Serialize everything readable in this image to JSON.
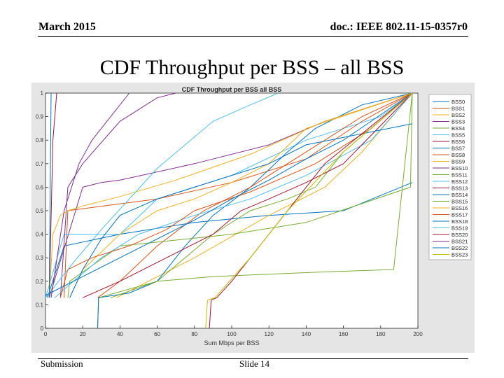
{
  "header": {
    "date": "March 2015",
    "doc": "doc.: IEEE 802.11-15-0357r0"
  },
  "slide": {
    "title": "CDF Throughput per BSS – all BSS"
  },
  "footer": {
    "submission": "Submission",
    "slide_number": "Slide 14"
  },
  "chart_data": {
    "type": "line",
    "title": "CDF Throughput per BSS    all BSS",
    "xlabel": "Sum Mbps per BSS",
    "ylabel": "",
    "xlim": [
      0,
      200
    ],
    "ylim": [
      0,
      1
    ],
    "x_ticks": [
      "0",
      "20",
      "40",
      "60",
      "80",
      "100",
      "120",
      "140",
      "160",
      "180",
      "200"
    ],
    "y_ticks": [
      "0",
      "0.1",
      "0.2",
      "0.3",
      "0.4",
      "0.5",
      "0.6",
      "0.7",
      "0.8",
      "0.9",
      "1"
    ],
    "x_tick_values": [
      0,
      20,
      40,
      60,
      80,
      100,
      120,
      140,
      160,
      180,
      200
    ],
    "y_tick_values": [
      0,
      0.1,
      0.2,
      0.3,
      0.4,
      0.5,
      0.6,
      0.7,
      0.8,
      0.9,
      1
    ],
    "legend_position": "right",
    "series": [
      {
        "name": "BSS0",
        "color": "#0072bd",
        "x": [
          1,
          10,
          40,
          80,
          120,
          160,
          197
        ],
        "y": [
          0.13,
          0.35,
          0.4,
          0.45,
          0.48,
          0.5,
          0.62
        ]
      },
      {
        "name": "BSS1",
        "color": "#d95319",
        "x": [
          10,
          12,
          60,
          100,
          140,
          170,
          197
        ],
        "y": [
          0.13,
          0.5,
          0.55,
          0.62,
          0.72,
          0.88,
          1.0
        ]
      },
      {
        "name": "BSS2",
        "color": "#edb120",
        "x": [
          38,
          80,
          120,
          150,
          170,
          197
        ],
        "y": [
          0.13,
          0.3,
          0.48,
          0.6,
          0.75,
          1.0
        ]
      },
      {
        "name": "BSS3",
        "color": "#7e2f8e",
        "x": [
          2,
          20,
          30,
          40,
          80,
          120,
          150,
          197
        ],
        "y": [
          0.13,
          0.6,
          0.62,
          0.63,
          0.7,
          0.78,
          0.88,
          1.0
        ]
      },
      {
        "name": "BSS4",
        "color": "#77ac30",
        "x": [
          28,
          28.5,
          60,
          90,
          110,
          130,
          145,
          160,
          197
        ],
        "y": [
          0,
          0.13,
          0.2,
          0.4,
          0.5,
          0.55,
          0.6,
          0.75,
          1.0
        ]
      },
      {
        "name": "BSS5",
        "color": "#4dbeee",
        "x": [
          0,
          10,
          40,
          60,
          100,
          140,
          180,
          197
        ],
        "y": [
          0.13,
          0.4,
          0.4,
          0.55,
          0.65,
          0.8,
          0.9,
          1.0
        ]
      },
      {
        "name": "BSS6",
        "color": "#a2142f",
        "x": [
          2,
          4,
          6
        ],
        "y": [
          0.13,
          0.8,
          1.0
        ]
      },
      {
        "name": "BSS7",
        "color": "#0072bd",
        "x": [
          28,
          28.5,
          45,
          60,
          75,
          90,
          110,
          130,
          145,
          170,
          197
        ],
        "y": [
          0,
          0.13,
          0.15,
          0.2,
          0.35,
          0.48,
          0.6,
          0.75,
          0.85,
          0.95,
          1.0
        ]
      },
      {
        "name": "BSS8",
        "color": "#d95319",
        "x": [
          28,
          40,
          60,
          85,
          110,
          130,
          150,
          170,
          197
        ],
        "y": [
          0.13,
          0.2,
          0.35,
          0.5,
          0.6,
          0.7,
          0.8,
          0.9,
          1.0
        ]
      },
      {
        "name": "BSS9",
        "color": "#edb120",
        "x": [
          13,
          20,
          40,
          60,
          80,
          100,
          120,
          140,
          197
        ],
        "y": [
          0.13,
          0.25,
          0.4,
          0.5,
          0.55,
          0.62,
          0.7,
          0.85,
          1.0
        ]
      },
      {
        "name": "BSS10",
        "color": "#7e2f8e",
        "x": [
          8,
          12,
          20,
          40,
          60,
          70
        ],
        "y": [
          0.13,
          0.6,
          0.7,
          0.88,
          0.98,
          1.0
        ]
      },
      {
        "name": "BSS11",
        "color": "#77ac30",
        "x": [
          12,
          13,
          40,
          100,
          140,
          196,
          197
        ],
        "y": [
          0.13,
          0.2,
          0.35,
          0.4,
          0.45,
          0.6,
          1.0
        ]
      },
      {
        "name": "BSS12",
        "color": "#4dbeee",
        "x": [
          5,
          15,
          30,
          50,
          80,
          110,
          140,
          175,
          197
        ],
        "y": [
          0.13,
          0.2,
          0.3,
          0.4,
          0.48,
          0.55,
          0.65,
          0.8,
          1.0
        ]
      },
      {
        "name": "BSS13",
        "color": "#a2142f",
        "x": [
          20,
          40,
          65,
          90,
          105,
          120,
          140,
          160,
          197
        ],
        "y": [
          0.13,
          0.2,
          0.3,
          0.4,
          0.5,
          0.55,
          0.62,
          0.7,
          1.0
        ]
      },
      {
        "name": "BSS14",
        "color": "#0072bd",
        "x": [
          13,
          20,
          30,
          40,
          60,
          80,
          100,
          120,
          140,
          197
        ],
        "y": [
          0.13,
          0.25,
          0.38,
          0.48,
          0.55,
          0.6,
          0.65,
          0.7,
          0.78,
          0.87
        ]
      },
      {
        "name": "BSS15",
        "color": "#77ac30",
        "x": [
          35,
          60,
          90,
          120,
          150,
          187,
          197
        ],
        "y": [
          0.13,
          0.2,
          0.22,
          0.23,
          0.24,
          0.25,
          1.0
        ]
      },
      {
        "name": "BSS16",
        "color": "#edb120",
        "x": [
          2,
          4,
          8,
          12,
          20,
          40,
          70,
          110,
          150,
          197
        ],
        "y": [
          0.13,
          0.4,
          0.48,
          0.5,
          0.52,
          0.56,
          0.63,
          0.74,
          0.88,
          1.0
        ]
      },
      {
        "name": "BSS17",
        "color": "#d95319",
        "x": [
          8,
          12,
          25,
          45,
          65,
          80,
          110,
          145,
          175,
          197
        ],
        "y": [
          0.13,
          0.25,
          0.3,
          0.35,
          0.42,
          0.5,
          0.58,
          0.7,
          0.85,
          1.0
        ]
      },
      {
        "name": "BSS18",
        "color": "#0072bd",
        "x": [
          0,
          20,
          40,
          60,
          80,
          100,
          120,
          140,
          160,
          197
        ],
        "y": [
          0.14,
          0.22,
          0.3,
          0.38,
          0.46,
          0.55,
          0.63,
          0.72,
          0.8,
          1.0
        ]
      },
      {
        "name": "BSS19",
        "color": "#4dbeee",
        "x": [
          0,
          15,
          30,
          45,
          60,
          75,
          90,
          110,
          125
        ],
        "y": [
          0.13,
          0.28,
          0.42,
          0.55,
          0.68,
          0.78,
          0.88,
          0.95,
          1.0
        ]
      },
      {
        "name": "BSS20",
        "color": "#a2142f",
        "x": [
          88,
          89,
          92,
          100,
          120,
          150,
          197
        ],
        "y": [
          0,
          0.12,
          0.13,
          0.2,
          0.4,
          0.7,
          1.0
        ]
      },
      {
        "name": "BSS21",
        "color": "#7e2f8e",
        "x": [
          3,
          10,
          18,
          25,
          35,
          45
        ],
        "y": [
          0.13,
          0.5,
          0.7,
          0.8,
          0.9,
          1.0
        ]
      },
      {
        "name": "BSS22",
        "color": "#0072bd",
        "x": [
          2,
          3
        ],
        "y": [
          0.13,
          1.0
        ]
      },
      {
        "name": "BSS23",
        "color": "#bfbf00",
        "x": [
          86,
          87,
          91,
          110,
          130,
          160,
          197
        ],
        "y": [
          0,
          0.12,
          0.13,
          0.3,
          0.5,
          0.75,
          1.0
        ]
      }
    ]
  }
}
